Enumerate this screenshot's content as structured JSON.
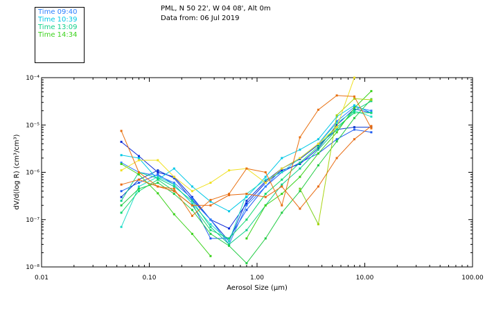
{
  "header": {
    "line1": "PML, N 50 22', W 04 08', Alt 0m",
    "line2": "Data from: 06 Jul 2019"
  },
  "legend": [
    {
      "label": "Time 09:40",
      "color": "#2a7fff"
    },
    {
      "label": "Time 10:39",
      "color": "#00c8e6"
    },
    {
      "label": "Time 13:09",
      "color": "#10d08a"
    },
    {
      "label": "Time 14:34",
      "color": "#3ad21a"
    }
  ],
  "chart_data": {
    "type": "line",
    "xlabel": "Aerosol Size (µm)",
    "ylabel": "dV/d(log R) (cm³/cm³)",
    "xscale": "log",
    "yscale": "log",
    "xlim": [
      0.01,
      100
    ],
    "ylim": [
      1e-08,
      0.0001
    ],
    "xticks": [
      0.01,
      0.1,
      1,
      10,
      100
    ],
    "xtick_labels": [
      "0.01",
      "0.10",
      "1.00",
      "10.00",
      "100.00"
    ],
    "yticks": [
      1e-08,
      1e-07,
      1e-06,
      1e-05,
      0.0001
    ],
    "ytick_labels": [
      "10⁻⁸",
      "10⁻⁷",
      "10⁻⁶",
      "10⁻⁵",
      "10⁻⁴"
    ],
    "x": [
      0.055,
      0.08,
      0.12,
      0.17,
      0.25,
      0.37,
      0.55,
      0.8,
      1.2,
      1.7,
      2.5,
      3.7,
      5.5,
      8.0,
      11.5
    ],
    "series": [
      {
        "color": "#0a28d8",
        "values": [
          4.4e-06,
          2.2e-06,
          1e-06,
          8e-07,
          3e-07,
          1e-07,
          6.5e-08,
          2.2e-07,
          6e-07,
          1.1e-06,
          1.5e-06,
          3.2e-06,
          1e-05,
          2.2e-05,
          1.8e-05
        ]
      },
      {
        "color": "#1e5cf0",
        "values": [
          4e-07,
          6e-07,
          9e-07,
          5.5e-07,
          2.2e-07,
          4e-08,
          4e-08,
          1.6e-07,
          5e-07,
          1e-06,
          1.6e-06,
          2.5e-06,
          5e-06,
          8e-06,
          7e-06
        ]
      },
      {
        "color": "#0a3ad0",
        "values": [
          3e-07,
          7e-07,
          1.1e-06,
          7.5e-07,
          2.6e-07,
          1e-07,
          3.5e-08,
          2.5e-07,
          6.5e-07,
          1.2e-06,
          1.9e-06,
          3.8e-06,
          8e-06,
          9e-06,
          9e-06
        ]
      },
      {
        "color": "#2a7fff",
        "values": [
          1.6e-06,
          1e-06,
          8.5e-07,
          6e-07,
          2.8e-07,
          1e-07,
          3e-08,
          2e-07,
          5e-07,
          1.2e-06,
          2e-06,
          4e-06,
          1.2e-05,
          2.4e-05,
          2e-05
        ]
      },
      {
        "color": "#00c8e6",
        "values": [
          2.3e-06,
          2e-06,
          7e-07,
          1.2e-06,
          5e-07,
          2.4e-07,
          1.5e-07,
          3e-07,
          8e-07,
          2e-06,
          3e-06,
          5e-06,
          1.5e-05,
          2.6e-05,
          1.8e-05
        ]
      },
      {
        "color": "#20dcc8",
        "values": [
          7e-08,
          5e-07,
          8e-07,
          5.5e-07,
          2.2e-07,
          8e-08,
          3.5e-08,
          3.5e-07,
          7e-07,
          1e-06,
          2e-06,
          4e-06,
          1.1e-05,
          2e-05,
          1.5e-05
        ]
      },
      {
        "color": "#10d08a",
        "values": [
          2.5e-07,
          1e-06,
          7.5e-07,
          5e-07,
          2.5e-07,
          7e-08,
          3e-08,
          6e-08,
          2e-07,
          5.5e-07,
          1.2e-06,
          3e-06,
          8e-06,
          2e-05,
          3.2e-05
        ]
      },
      {
        "color": "#12d870",
        "values": [
          1.4e-07,
          4e-07,
          7e-07,
          4e-07,
          2e-07,
          6e-08,
          4e-08,
          1e-07,
          3.5e-07,
          7e-07,
          1.6e-06,
          3.5e-06,
          9e-06,
          1.8e-05,
          1.8e-05
        ]
      },
      {
        "color": "#22cc44",
        "values": [
          2e-07,
          4.5e-07,
          6e-07,
          3.5e-07,
          1.6e-07,
          5e-08,
          2.8e-08,
          1.2e-08,
          4e-08,
          1.4e-07,
          4e-07,
          1.4e-06,
          4.5e-06,
          1.4e-05,
          3.5e-05
        ]
      },
      {
        "color": "#3ad21a",
        "values": [
          1.5e-06,
          9e-07,
          3.6e-07,
          1.3e-07,
          5e-08,
          1.7e-08,
          null,
          null,
          null,
          null,
          null,
          null,
          null,
          null,
          null
        ]
      },
      {
        "color": "#3ad21a",
        "values": [
          null,
          null,
          null,
          null,
          null,
          null,
          null,
          4e-08,
          2e-07,
          3.5e-07,
          8e-07,
          2.5e-06,
          7e-06,
          2.3e-05,
          5.2e-05
        ]
      },
      {
        "color": "#7ad21a",
        "values": [
          null,
          null,
          null,
          null,
          null,
          null,
          null,
          null,
          null,
          null,
          4.5e-07,
          8e-08,
          null,
          null,
          null
        ]
      },
      {
        "color": "#a8d410",
        "values": [
          null,
          null,
          null,
          null,
          null,
          null,
          null,
          null,
          null,
          null,
          null,
          8e-08,
          1.6e-05,
          3.6e-05,
          3.4e-05
        ]
      },
      {
        "color": "#f0e020",
        "values": [
          1.1e-06,
          1.8e-06,
          1.8e-06,
          8e-07,
          4e-07,
          6e-07,
          1.1e-06,
          1.2e-06,
          6e-07,
          1.2e-06,
          2e-06,
          4e-06,
          9e-06,
          0.0001,
          null
        ]
      },
      {
        "color": "#e87010",
        "values": [
          7.5e-06,
          1e-06,
          5e-07,
          4.5e-07,
          1.2e-07,
          2.6e-07,
          3.5e-07,
          1.2e-06,
          1e-06,
          2e-07,
          5.5e-06,
          2.1e-05,
          4.2e-05,
          4e-05,
          8.5e-06
        ]
      },
      {
        "color": "#e86a10",
        "values": [
          5.5e-07,
          7e-07,
          5e-07,
          4e-07,
          2e-07,
          2e-07,
          3.3e-07,
          3.5e-07,
          3e-07,
          5e-07,
          1.7e-07,
          5e-07,
          2e-06,
          5e-06,
          9.5e-06
        ]
      }
    ]
  }
}
